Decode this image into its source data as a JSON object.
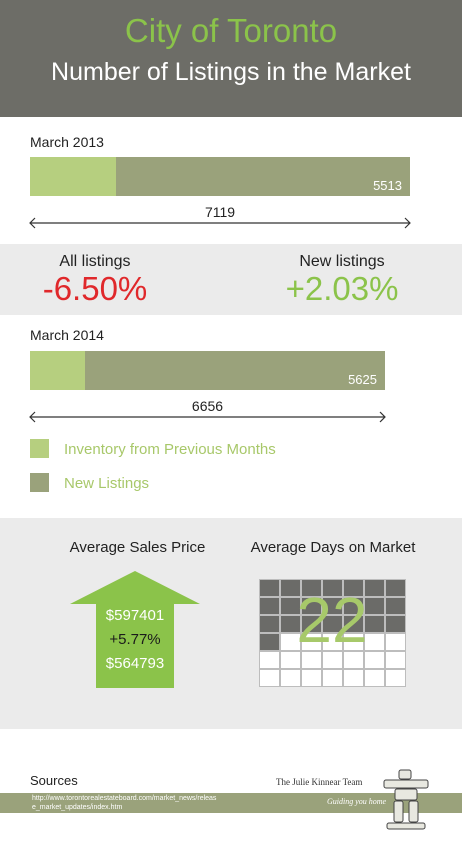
{
  "header": {
    "city": "City of Toronto",
    "subtitle": "Number of Listings in the Market"
  },
  "colors": {
    "header_bg": "#6d6d67",
    "accent_green": "#8bc34a",
    "bar_new": "#9aa27b",
    "bar_previous": "#b6cf7f",
    "negative": "#e0282b",
    "positive": "#8bc34a"
  },
  "chart_data": [
    {
      "type": "bar",
      "title": "March 2013",
      "stacked": true,
      "series": [
        {
          "name": "Inventory from Previous Months",
          "values": [
            1606
          ]
        },
        {
          "name": "New Listings",
          "values": [
            5513
          ]
        }
      ],
      "total": 7119,
      "labels": {
        "new": "5513",
        "total": "7119"
      }
    },
    {
      "type": "bar",
      "title": "March 2014",
      "stacked": true,
      "series": [
        {
          "name": "Inventory from Previous Months",
          "values": [
            1031
          ]
        },
        {
          "name": "New Listings",
          "values": [
            5625
          ]
        }
      ],
      "total": 6656,
      "labels": {
        "new": "5625",
        "total": "6656"
      }
    }
  ],
  "changes": {
    "all_label": "All listings",
    "all_value": "-6.50%",
    "new_label": "New listings",
    "new_value": "+2.03%"
  },
  "legend": [
    {
      "label": "Inventory from Previous Months"
    },
    {
      "label": "New Listings"
    }
  ],
  "stats": {
    "price_title": "Average Sales Price",
    "price_2014": "$597401",
    "price_change": "+5.77%",
    "price_2013": "$564793",
    "days_title": "Average Days on Market",
    "days_value": "22"
  },
  "sources": {
    "label": "Sources",
    "url": "http://www.torontorealestateboard.com/market_news/release_market_updates/index.htm"
  },
  "logo": {
    "name": "The Julie Kinnear Team",
    "tagline": "Guiding you home"
  }
}
